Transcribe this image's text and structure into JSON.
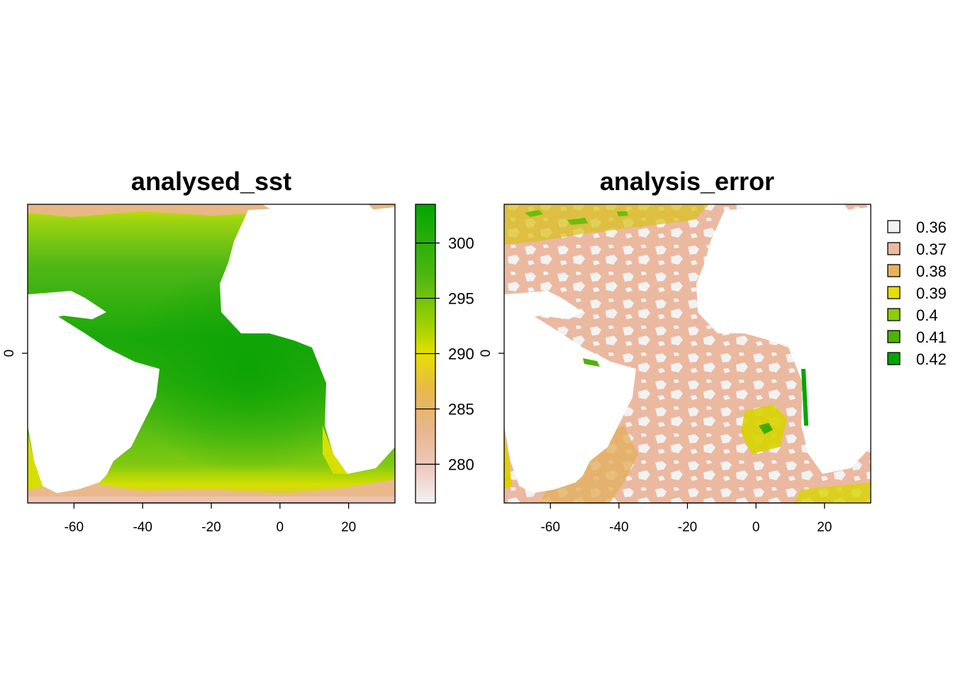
{
  "panels": [
    {
      "title": "analysed_sst",
      "legend_type": "continuous",
      "legend_ticks": [
        300,
        295,
        290,
        285,
        280
      ],
      "legend_range": [
        276.5,
        303.5
      ]
    },
    {
      "title": "analysis_error",
      "legend_type": "categorical",
      "legend_items": [
        {
          "label": "0.36",
          "color": "#f2f2f2"
        },
        {
          "label": "0.37",
          "color": "#ebb9a0"
        },
        {
          "label": "0.38",
          "color": "#e8b25a"
        },
        {
          "label": "0.39",
          "color": "#e6e000"
        },
        {
          "label": "0.4",
          "color": "#8fcc0a"
        },
        {
          "label": "0.41",
          "color": "#4db300"
        },
        {
          "label": "0.42",
          "color": "#00a600"
        }
      ]
    }
  ],
  "x_axis": {
    "ticks": [
      "-60",
      "-40",
      "-20",
      "0",
      "20"
    ],
    "range": [
      -73.5,
      33.5
    ]
  },
  "y_axis": {
    "ticks": [
      "0"
    ]
  },
  "colors": {
    "land": "#ffffff",
    "sst_warm": "#12a40a",
    "sst_mid": "#7ccc12",
    "sst_cool": "#dbe200",
    "sst_cold": "#e7b56a",
    "sst_coldest": "#edc4b4"
  }
}
